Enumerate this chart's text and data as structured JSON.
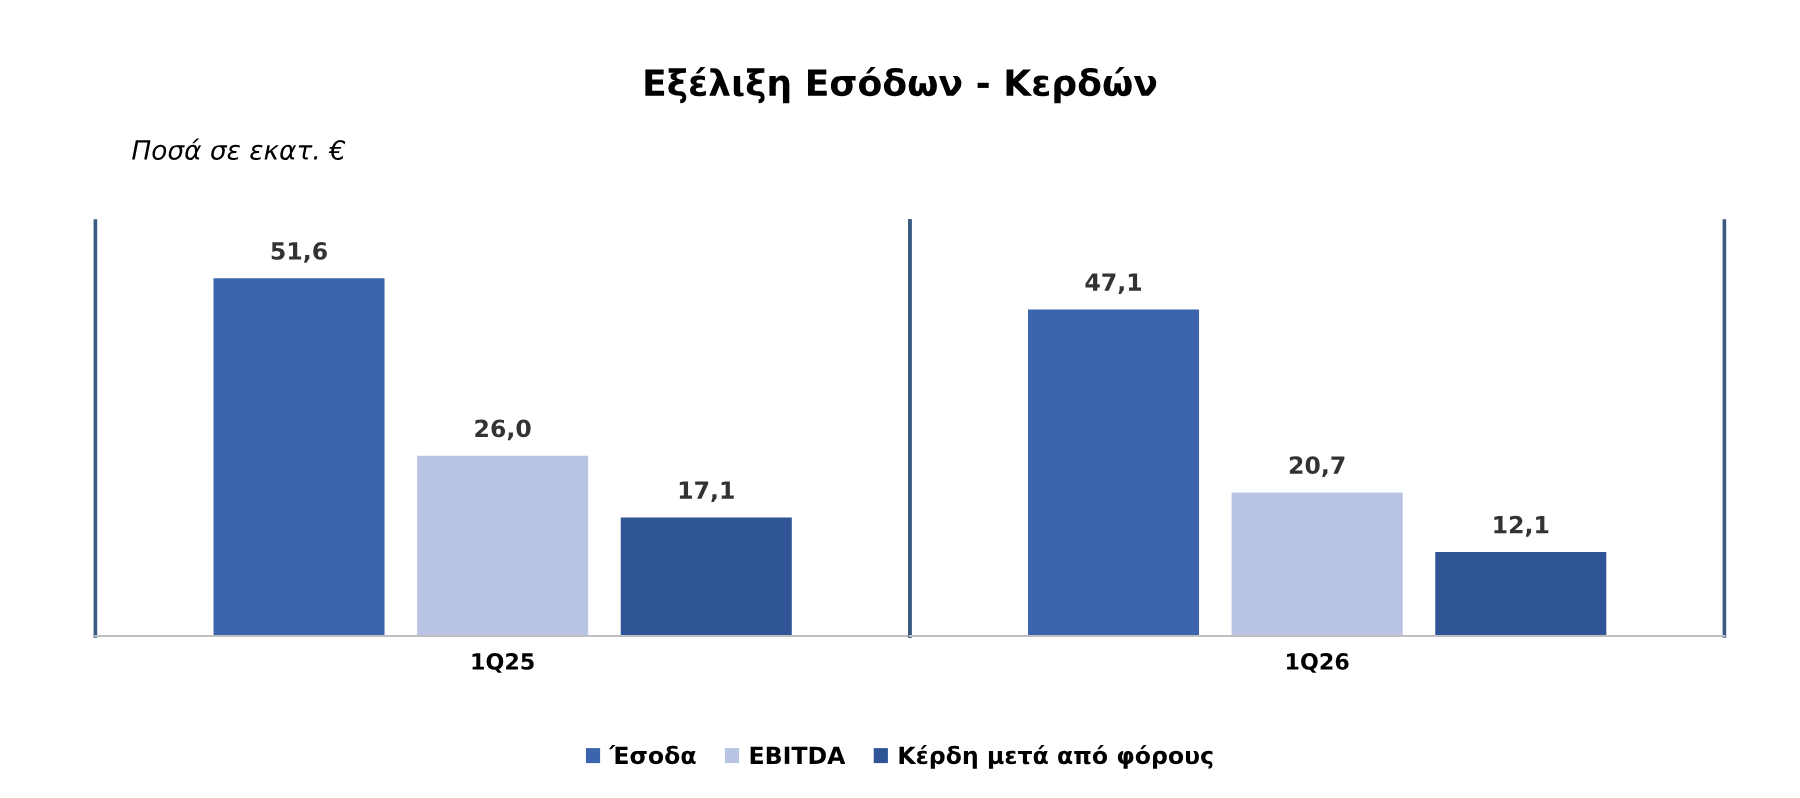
{
  "chart_data": {
    "type": "bar",
    "title": "Εξέλιξη Εσόδων - Κερδών",
    "subtitle": "Ποσά σε εκατ. €",
    "categories": [
      "1Q25",
      "1Q26"
    ],
    "series": [
      {
        "name": "Έσοδα",
        "color": "#3d65ae",
        "values": [
          51.6,
          47.1
        ],
        "value_labels": [
          "51,6",
          "47,1"
        ]
      },
      {
        "name": "EBITDA",
        "color": "#b9c3e4",
        "values": [
          26.0,
          20.7
        ],
        "value_labels": [
          "26,0",
          "20,7"
        ]
      },
      {
        "name": "Κέρδη μετά από φόρους",
        "color": "#2f5597",
        "values": [
          17.1,
          12.1
        ],
        "value_labels": [
          "17,1",
          "12,1"
        ]
      }
    ],
    "legend": "bottom",
    "grid": false
  }
}
